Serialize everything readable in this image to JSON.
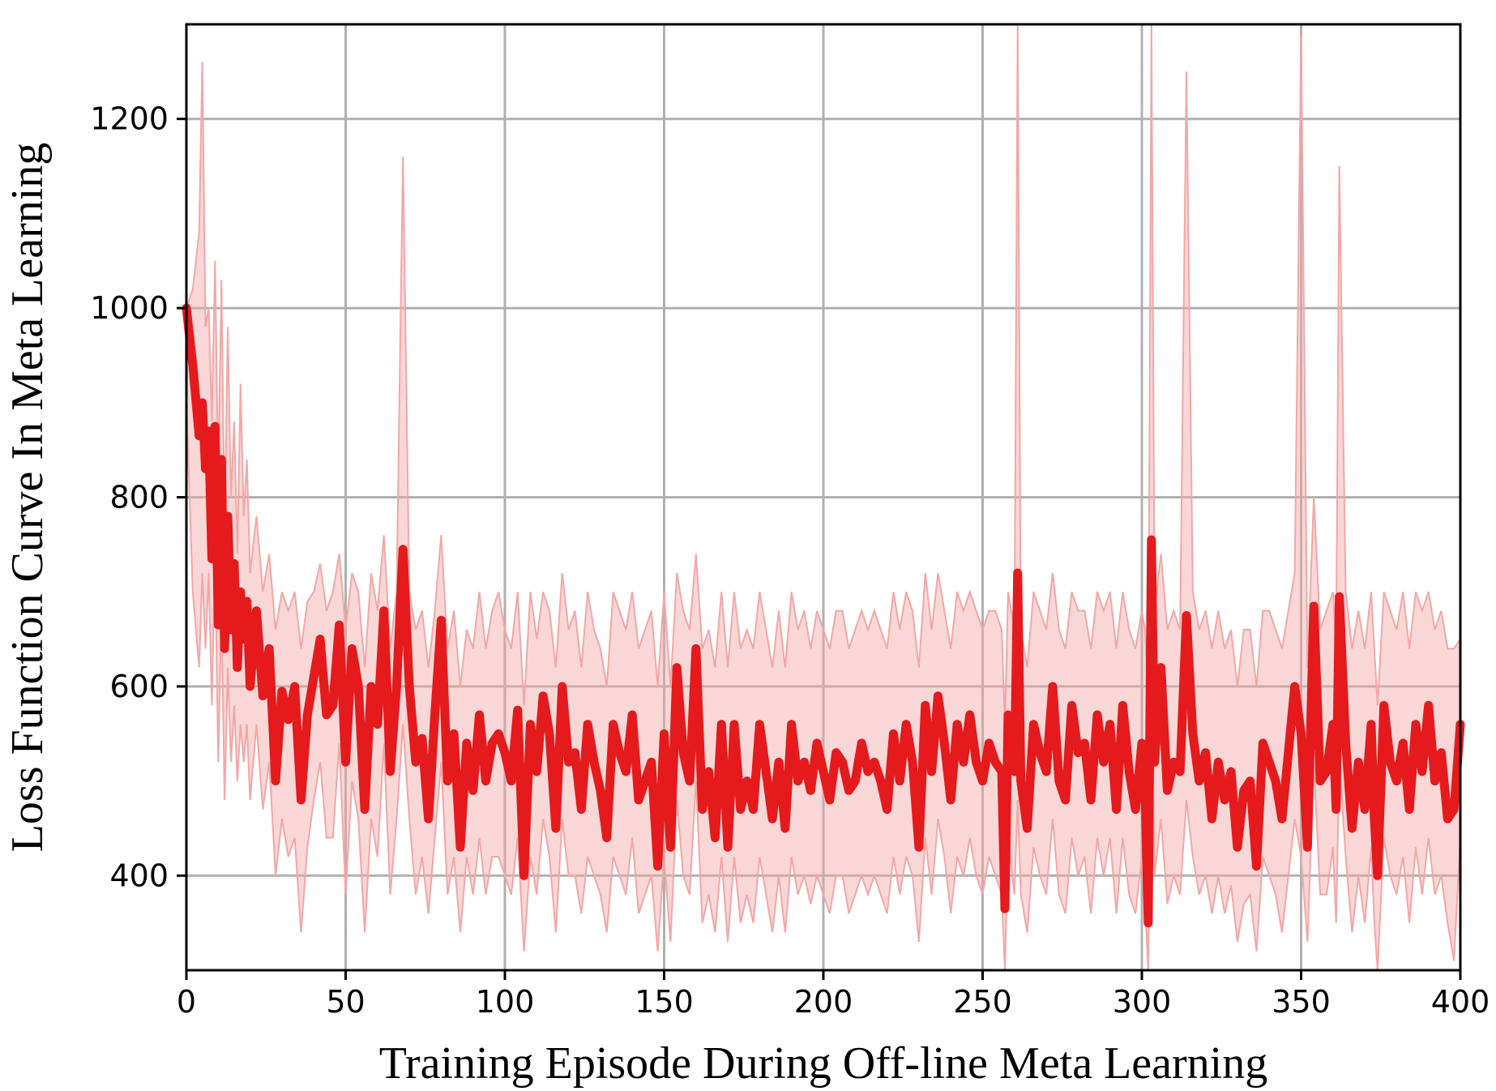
{
  "chart_data": {
    "type": "line",
    "title": "",
    "xlabel": "Training Episode During Off-line Meta Learning",
    "ylabel": "Loss Function Curve In Meta Learning",
    "xlim": [
      0,
      400
    ],
    "ylim": [
      300,
      1300
    ],
    "xticks": [
      0,
      50,
      100,
      150,
      200,
      250,
      300,
      350,
      400
    ],
    "yticks": [
      400,
      600,
      800,
      1000,
      1200
    ],
    "grid": true,
    "legend": "none",
    "colors": {
      "mean": "#e41a1c",
      "band": "#f4a6a6"
    },
    "series": [
      {
        "x": [
          0,
          2,
          4,
          5,
          6,
          7,
          8,
          9,
          10,
          11,
          12,
          13,
          14,
          15,
          16,
          17,
          18,
          19,
          20,
          22,
          24,
          26,
          28,
          30,
          32,
          34,
          36,
          38,
          40,
          42,
          44,
          46,
          48,
          50,
          52,
          54,
          56,
          58,
          60,
          62,
          64,
          66,
          68,
          70,
          72,
          74,
          76,
          78,
          80,
          82,
          84,
          86,
          88,
          90,
          92,
          94,
          96,
          98,
          100,
          102,
          104,
          106,
          108,
          110,
          112,
          114,
          116,
          118,
          120,
          122,
          124,
          126,
          128,
          130,
          132,
          134,
          136,
          138,
          140,
          142,
          144,
          146,
          148,
          150,
          152,
          154,
          156,
          158,
          160,
          162,
          164,
          166,
          168,
          170,
          172,
          174,
          176,
          178,
          180,
          182,
          184,
          186,
          188,
          190,
          192,
          194,
          196,
          198,
          200,
          202,
          204,
          206,
          208,
          210,
          212,
          214,
          216,
          218,
          220,
          222,
          224,
          226,
          228,
          230,
          232,
          234,
          236,
          238,
          240,
          242,
          244,
          246,
          248,
          250,
          252,
          254,
          256,
          257,
          258,
          260,
          261,
          262,
          264,
          266,
          268,
          270,
          272,
          274,
          276,
          278,
          280,
          282,
          284,
          286,
          288,
          290,
          292,
          294,
          296,
          298,
          300,
          301,
          302,
          303,
          304,
          306,
          308,
          310,
          312,
          314,
          316,
          318,
          320,
          322,
          324,
          326,
          328,
          330,
          332,
          334,
          336,
          338,
          340,
          342,
          344,
          346,
          348,
          350,
          352,
          354,
          356,
          358,
          360,
          361,
          362,
          364,
          366,
          368,
          370,
          372,
          373,
          374,
          376,
          378,
          380,
          382,
          384,
          386,
          388,
          390,
          392,
          394,
          396,
          398,
          400
        ],
        "y": [
          1000,
          940,
          865,
          900,
          830,
          870,
          735,
          875,
          665,
          840,
          640,
          780,
          660,
          730,
          620,
          700,
          650,
          690,
          600,
          680,
          590,
          640,
          500,
          595,
          565,
          600,
          480,
          570,
          610,
          650,
          570,
          580,
          665,
          520,
          640,
          600,
          470,
          600,
          560,
          680,
          510,
          600,
          745,
          600,
          520,
          545,
          460,
          570,
          670,
          500,
          550,
          430,
          540,
          490,
          570,
          500,
          540,
          550,
          530,
          500,
          575,
          400,
          560,
          510,
          590,
          550,
          450,
          600,
          520,
          530,
          470,
          560,
          520,
          490,
          440,
          560,
          530,
          510,
          570,
          480,
          500,
          520,
          410,
          550,
          430,
          620,
          530,
          500,
          640,
          470,
          510,
          440,
          560,
          430,
          560,
          470,
          500,
          470,
          560,
          510,
          460,
          520,
          450,
          560,
          500,
          520,
          490,
          540,
          510,
          480,
          530,
          520,
          490,
          500,
          540,
          510,
          520,
          500,
          470,
          550,
          500,
          560,
          520,
          430,
          580,
          510,
          590,
          540,
          480,
          560,
          520,
          570,
          520,
          500,
          540,
          520,
          510,
          365,
          570,
          510,
          720,
          500,
          450,
          560,
          530,
          510,
          600,
          500,
          480,
          580,
          530,
          540,
          480,
          570,
          520,
          560,
          470,
          580,
          510,
          470,
          540,
          490,
          350,
          755,
          520,
          620,
          490,
          520,
          510,
          675,
          550,
          500,
          530,
          460,
          520,
          480,
          510,
          430,
          490,
          500,
          410,
          540,
          520,
          500,
          460,
          530,
          600,
          550,
          430,
          685,
          500,
          510,
          560,
          470,
          695,
          540,
          450,
          520,
          470,
          560,
          460,
          400,
          580,
          520,
          500,
          540,
          470,
          560,
          510,
          580,
          500,
          530,
          460,
          470,
          560
        ]
      }
    ],
    "band": {
      "upper": [
        1000,
        1020,
        1080,
        1260,
        980,
        1000,
        880,
        1050,
        820,
        1030,
        760,
        980,
        800,
        880,
        740,
        920,
        780,
        840,
        720,
        780,
        700,
        740,
        660,
        700,
        680,
        700,
        640,
        690,
        700,
        730,
        680,
        700,
        740,
        660,
        720,
        700,
        620,
        720,
        680,
        760,
        640,
        700,
        1160,
        700,
        660,
        680,
        620,
        680,
        760,
        640,
        680,
        600,
        660,
        640,
        700,
        640,
        680,
        700,
        660,
        640,
        700,
        580,
        700,
        650,
        700,
        680,
        620,
        720,
        660,
        680,
        620,
        700,
        660,
        640,
        600,
        700,
        680,
        660,
        700,
        640,
        660,
        680,
        600,
        700,
        600,
        720,
        680,
        660,
        740,
        640,
        660,
        620,
        700,
        620,
        700,
        640,
        660,
        640,
        700,
        660,
        620,
        680,
        620,
        700,
        660,
        680,
        640,
        680,
        660,
        640,
        680,
        680,
        640,
        660,
        680,
        660,
        680,
        660,
        640,
        700,
        660,
        700,
        680,
        620,
        720,
        660,
        720,
        680,
        640,
        700,
        680,
        700,
        680,
        660,
        680,
        680,
        660,
        560,
        700,
        660,
        1300,
        660,
        620,
        700,
        680,
        660,
        720,
        660,
        640,
        700,
        680,
        680,
        640,
        700,
        680,
        700,
        640,
        700,
        660,
        640,
        680,
        660,
        580,
        1300,
        680,
        740,
        660,
        680,
        660,
        1250,
        700,
        660,
        680,
        640,
        680,
        640,
        660,
        600,
        660,
        660,
        600,
        680,
        680,
        660,
        640,
        680,
        720,
        1290,
        620,
        800,
        660,
        680,
        700,
        640,
        1150,
        700,
        640,
        680,
        640,
        700,
        640,
        580,
        700,
        680,
        660,
        700,
        640,
        700,
        680,
        700,
        660,
        680,
        640,
        640,
        650
      ],
      "lower": [
        900,
        700,
        620,
        720,
        640,
        720,
        580,
        740,
        520,
        680,
        480,
        620,
        520,
        580,
        500,
        560,
        520,
        560,
        480,
        560,
        470,
        520,
        400,
        460,
        420,
        440,
        340,
        430,
        480,
        520,
        440,
        440,
        540,
        380,
        500,
        460,
        340,
        460,
        420,
        540,
        380,
        460,
        560,
        460,
        380,
        420,
        360,
        440,
        520,
        380,
        420,
        340,
        420,
        380,
        440,
        380,
        420,
        420,
        400,
        380,
        440,
        320,
        420,
        380,
        460,
        420,
        340,
        460,
        400,
        400,
        360,
        420,
        400,
        380,
        340,
        420,
        400,
        380,
        440,
        360,
        380,
        400,
        320,
        420,
        330,
        480,
        400,
        380,
        500,
        350,
        380,
        340,
        420,
        330,
        420,
        350,
        380,
        350,
        420,
        380,
        340,
        400,
        340,
        420,
        380,
        400,
        370,
        400,
        380,
        360,
        400,
        400,
        360,
        380,
        400,
        380,
        400,
        380,
        360,
        420,
        380,
        420,
        400,
        330,
        440,
        380,
        460,
        420,
        360,
        420,
        400,
        440,
        400,
        380,
        420,
        400,
        380,
        300,
        440,
        380,
        480,
        380,
        340,
        430,
        400,
        380,
        460,
        380,
        360,
        440,
        400,
        420,
        360,
        440,
        400,
        440,
        360,
        440,
        380,
        360,
        420,
        370,
        300,
        560,
        400,
        460,
        370,
        400,
        380,
        480,
        420,
        380,
        400,
        360,
        400,
        360,
        390,
        330,
        370,
        380,
        320,
        420,
        400,
        380,
        340,
        400,
        460,
        420,
        330,
        520,
        380,
        380,
        430,
        350,
        520,
        420,
        340,
        400,
        350,
        430,
        350,
        290,
        440,
        400,
        380,
        420,
        350,
        430,
        380,
        440,
        380,
        400,
        350,
        310,
        440
      ]
    }
  }
}
